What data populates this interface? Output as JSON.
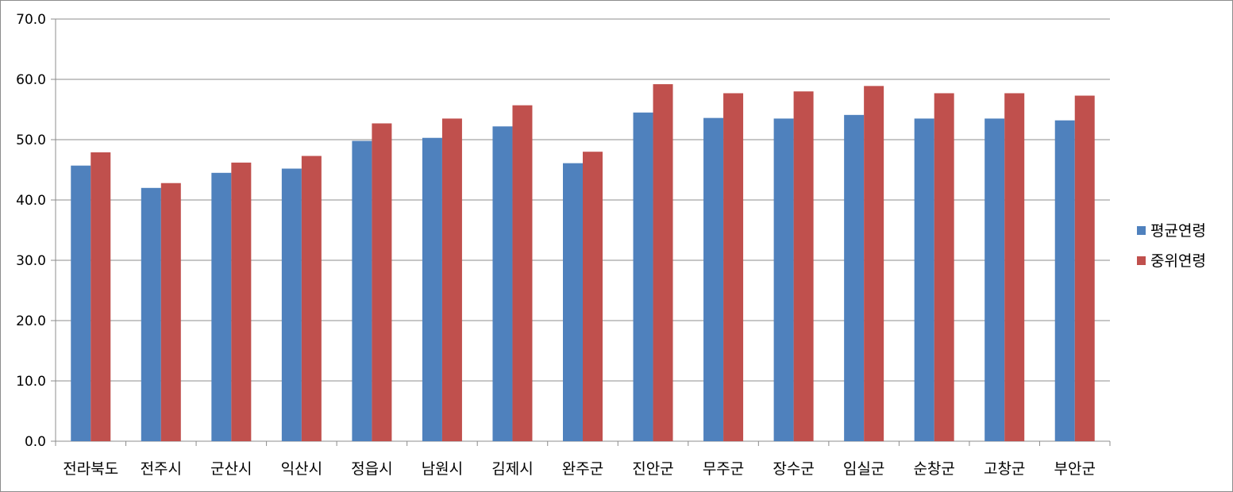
{
  "chart_data": {
    "type": "bar",
    "title": "",
    "xlabel": "",
    "ylabel": "",
    "ylim": [
      0,
      70
    ],
    "yticks": [
      "0.0",
      "10.0",
      "20.0",
      "30.0",
      "40.0",
      "50.0",
      "60.0",
      "70.0"
    ],
    "grid": true,
    "legend_position": "right",
    "categories": [
      "전라북도",
      "전주시",
      "군산시",
      "익산시",
      "정읍시",
      "남원시",
      "김제시",
      "완주군",
      "진안군",
      "무주군",
      "장수군",
      "임실군",
      "순창군",
      "고창군",
      "부안군"
    ],
    "series": [
      {
        "name": "평균연령",
        "color": "#4f81bd",
        "values": [
          45.7,
          42.0,
          44.5,
          45.2,
          49.8,
          50.3,
          52.2,
          46.1,
          54.5,
          53.6,
          53.5,
          54.1,
          53.5,
          53.5,
          53.2
        ]
      },
      {
        "name": "중위연령",
        "color": "#c0504d",
        "values": [
          47.9,
          42.8,
          46.2,
          47.3,
          52.7,
          53.5,
          55.7,
          48.0,
          59.2,
          57.7,
          58.0,
          58.9,
          57.7,
          57.7,
          57.3
        ]
      }
    ]
  }
}
